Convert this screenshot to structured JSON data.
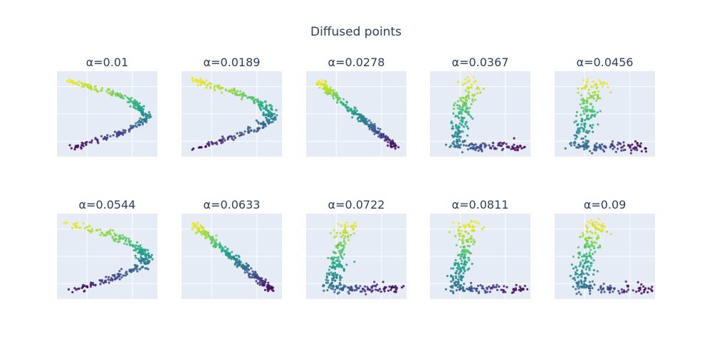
{
  "figure": {
    "title": "Diffused points"
  },
  "chart_data": {
    "type": "scatter",
    "title": "Diffused points",
    "layout": "2 rows x 5 columns of subplots",
    "colorscale": [
      "#440154",
      "#482878",
      "#3e4989",
      "#31688e",
      "#26828e",
      "#1f9e89",
      "#35b779",
      "#6ece58",
      "#b5de2b",
      "#fde725"
    ],
    "grid": true,
    "show_axes_ticks": false,
    "panels": [
      {
        "title": "α=0.01",
        "shape": "s",
        "spread": 0.18
      },
      {
        "title": "α=0.0189",
        "shape": "s",
        "spread": 0.25
      },
      {
        "title": "α=0.0278",
        "shape": "diag",
        "spread": 0.2
      },
      {
        "title": "α=0.0367",
        "shape": "L",
        "spread": 0.35
      },
      {
        "title": "α=0.0456",
        "shape": "L",
        "spread": 0.4
      },
      {
        "title": "α=0.0544",
        "shape": "s",
        "spread": 0.28
      },
      {
        "title": "α=0.0633",
        "shape": "diag",
        "spread": 0.22
      },
      {
        "title": "α=0.0722",
        "shape": "L",
        "spread": 0.36
      },
      {
        "title": "α=0.0811",
        "shape": "L",
        "spread": 0.4
      },
      {
        "title": "α=0.09",
        "shape": "L",
        "spread": 0.42
      }
    ]
  }
}
